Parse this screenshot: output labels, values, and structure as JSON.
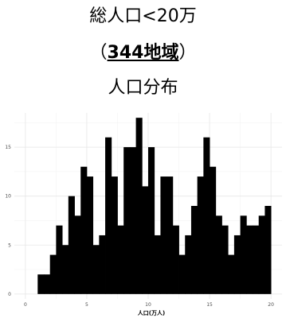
{
  "header": {
    "line1": "総人口<20万",
    "open_paren": "（",
    "count": "344地域",
    "close_paren": "）",
    "line3": "人口分布"
  },
  "chart_data": {
    "type": "bar",
    "xlabel": "人口(万人)",
    "ylabel": "",
    "x_ticks": [
      0,
      5,
      10,
      15,
      20
    ],
    "y_ticks": [
      0,
      5,
      10,
      15
    ],
    "xlim": [
      -0.9,
      20.9
    ],
    "ylim": [
      -0.5,
      18.5
    ],
    "grid": true,
    "bin_width": 0.5,
    "bins_start": [
      1.0,
      1.5,
      2.0,
      2.5,
      3.0,
      3.5,
      4.0,
      4.5,
      5.0,
      5.5,
      6.0,
      6.5,
      7.0,
      7.5,
      8.0,
      8.5,
      9.0,
      9.5,
      10.0,
      10.5,
      11.0,
      11.5,
      12.0,
      12.5,
      13.0,
      13.5,
      14.0,
      14.5,
      15.0,
      15.5,
      16.0,
      16.5,
      17.0,
      17.5,
      18.0,
      18.5,
      19.0,
      19.5
    ],
    "values": [
      2,
      2,
      4,
      7,
      5,
      10,
      8,
      13,
      12,
      5,
      6,
      16,
      12,
      7,
      15,
      15,
      18,
      11,
      15,
      6,
      12,
      12,
      7,
      4,
      6,
      9,
      12,
      16,
      13,
      8,
      7,
      4,
      6,
      8,
      7,
      7,
      8,
      9
    ],
    "color": "#000000"
  }
}
